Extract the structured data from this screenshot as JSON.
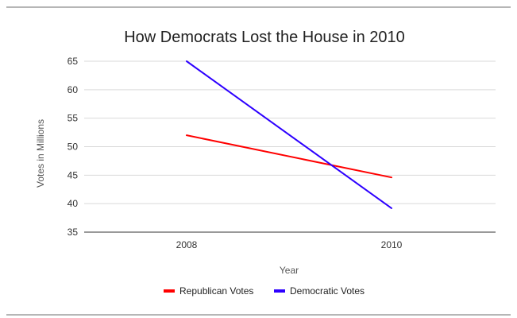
{
  "chart_data": {
    "type": "line",
    "title": "How Democrats Lost the House in 2010",
    "xlabel": "Year",
    "ylabel": "Votes in Millions",
    "categories": [
      "2008",
      "2010"
    ],
    "ylim": [
      35,
      65
    ],
    "yticks": [
      35,
      40,
      45,
      50,
      55,
      60,
      65
    ],
    "grid": true,
    "legend_position": "bottom",
    "series": [
      {
        "name": "Republican Votes",
        "color": "#ff0000",
        "values": [
          52,
          44.6
        ]
      },
      {
        "name": "Democratic Votes",
        "color": "#2d00ff",
        "values": [
          65,
          39.2
        ]
      }
    ]
  }
}
